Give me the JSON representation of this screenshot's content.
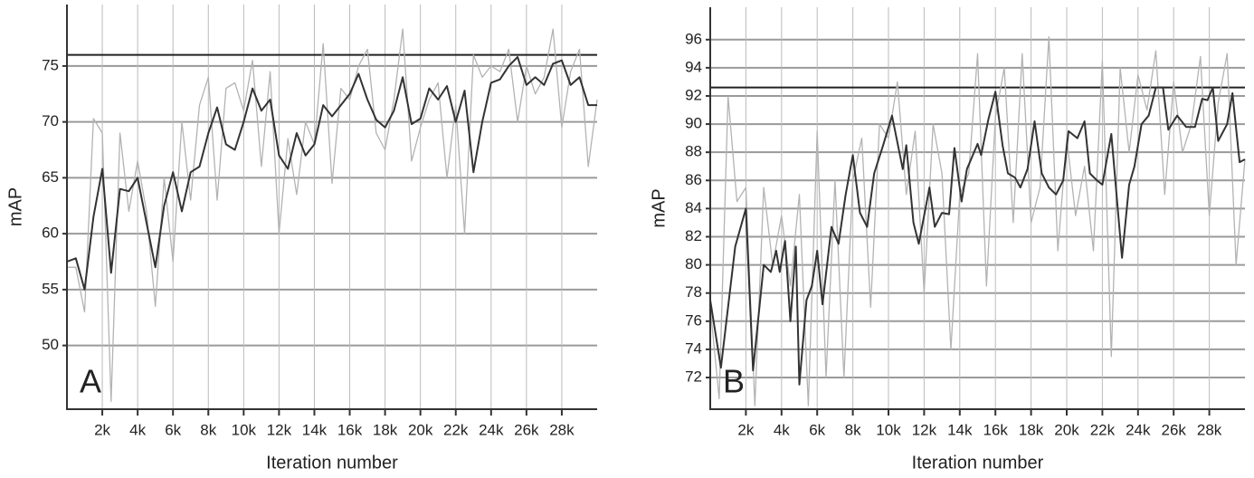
{
  "chart_data": [
    {
      "type": "line",
      "panel_label": "A",
      "x_label": "Iteration number",
      "y_label": "mAP",
      "xlim": [
        0,
        30000
      ],
      "ylim": [
        44.3,
        80.5
      ],
      "xticks": [
        {
          "value": 2000,
          "label": "2k"
        },
        {
          "value": 4000,
          "label": "4k"
        },
        {
          "value": 6000,
          "label": "6k"
        },
        {
          "value": 8000,
          "label": "8k"
        },
        {
          "value": 10000,
          "label": "10k"
        },
        {
          "value": 12000,
          "label": "12k"
        },
        {
          "value": 14000,
          "label": "14k"
        },
        {
          "value": 16000,
          "label": "16k"
        },
        {
          "value": 18000,
          "label": "18k"
        },
        {
          "value": 20000,
          "label": "20k"
        },
        {
          "value": 22000,
          "label": "22k"
        },
        {
          "value": 24000,
          "label": "24k"
        },
        {
          "value": 26000,
          "label": "26k"
        },
        {
          "value": 28000,
          "label": "28k"
        }
      ],
      "yticks": [
        50,
        55,
        60,
        65,
        70,
        75
      ],
      "grid": true,
      "reference_line": 76,
      "series": [
        {
          "color": "#b3b3b3",
          "x": [
            0,
            500,
            1000,
            1500,
            2000,
            2500,
            3000,
            3500,
            4000,
            4500,
            5000,
            5500,
            6000,
            6500,
            7000,
            7500,
            8000,
            8500,
            9000,
            9500,
            10000,
            10500,
            11000,
            11500,
            12000,
            12500,
            13000,
            13500,
            14000,
            14500,
            15000,
            15500,
            16000,
            16500,
            17000,
            17500,
            18000,
            18500,
            19000,
            19500,
            20000,
            20500,
            21000,
            21500,
            22000,
            22500,
            23000,
            23500,
            24000,
            24500,
            25000,
            25500,
            26000,
            26500,
            27000,
            27500,
            28000,
            28500,
            29000,
            29500,
            30000
          ],
          "values": [
            57,
            57,
            53,
            70.3,
            69,
            45,
            69,
            62,
            66.5,
            62,
            53.5,
            65,
            57.5,
            70,
            63,
            71.5,
            74,
            63,
            73,
            73.5,
            71,
            75.5,
            66,
            74.5,
            60,
            68.5,
            63.5,
            70,
            68,
            77,
            64.5,
            73,
            72,
            75,
            76.5,
            69,
            67.5,
            72,
            78.3,
            66.5,
            69.5,
            72,
            73.5,
            65,
            71.5,
            60,
            76,
            74,
            75,
            74.5,
            76.5,
            70,
            75,
            72.5,
            74,
            78.3,
            69.5,
            74.5,
            76.5,
            66,
            72
          ]
        },
        {
          "color": "#333333",
          "x": [
            0,
            500,
            1000,
            1500,
            2000,
            2500,
            3000,
            3500,
            4000,
            4500,
            5000,
            5500,
            6000,
            6500,
            7000,
            7500,
            8000,
            8500,
            9000,
            9500,
            10000,
            10500,
            11000,
            11500,
            12000,
            12500,
            13000,
            13500,
            14000,
            14500,
            15000,
            15500,
            16000,
            16500,
            17000,
            17500,
            18000,
            18500,
            19000,
            19500,
            20000,
            20500,
            21000,
            21500,
            22000,
            22500,
            23000,
            23500,
            24000,
            24500,
            25000,
            25500,
            26000,
            26500,
            27000,
            27500,
            28000,
            28500,
            29000,
            29500,
            30000
          ],
          "values": [
            57.5,
            57.8,
            55,
            61.5,
            65.8,
            56.5,
            64,
            63.8,
            65,
            61,
            57,
            62.5,
            65.5,
            62,
            65.5,
            66,
            69,
            71.3,
            68,
            67.5,
            70,
            73,
            71,
            72,
            67,
            65.8,
            69,
            67,
            68,
            71.5,
            70.5,
            71.5,
            72.5,
            74.3,
            72,
            70.2,
            69.5,
            71,
            74,
            69.8,
            70.3,
            73,
            72,
            73.2,
            70,
            72.8,
            65.5,
            70,
            73.5,
            73.8,
            75,
            75.8,
            73.3,
            74,
            73.3,
            75.2,
            75.5,
            73.3,
            74,
            71.5,
            71.5
          ]
        }
      ]
    },
    {
      "type": "line",
      "panel_label": "B",
      "x_label": "Iteration number",
      "y_label": "mAP",
      "xlim": [
        0,
        30000
      ],
      "ylim": [
        69.75,
        98.3
      ],
      "xticks": [
        {
          "value": 2000,
          "label": "2k"
        },
        {
          "value": 4000,
          "label": "4k"
        },
        {
          "value": 6000,
          "label": "6k"
        },
        {
          "value": 8000,
          "label": "8k"
        },
        {
          "value": 10000,
          "label": "10k"
        },
        {
          "value": 12000,
          "label": "12k"
        },
        {
          "value": 14000,
          "label": "14k"
        },
        {
          "value": 16000,
          "label": "16k"
        },
        {
          "value": 18000,
          "label": "18k"
        },
        {
          "value": 20000,
          "label": "20k"
        },
        {
          "value": 22000,
          "label": "22k"
        },
        {
          "value": 24000,
          "label": "24k"
        },
        {
          "value": 26000,
          "label": "26k"
        },
        {
          "value": 28000,
          "label": "28k"
        }
      ],
      "yticks": [
        72,
        74,
        76,
        78,
        80,
        82,
        84,
        86,
        88,
        90,
        92,
        94,
        96
      ],
      "grid": true,
      "reference_line": 92.6,
      "series": [
        {
          "color": "#b3b3b3",
          "x": [
            0,
            500,
            1000,
            1500,
            2000,
            2500,
            3000,
            3500,
            4000,
            4500,
            5000,
            5500,
            6000,
            6500,
            7000,
            7500,
            8000,
            8500,
            9000,
            9500,
            10000,
            10500,
            11000,
            11500,
            12000,
            12500,
            13000,
            13500,
            14000,
            14500,
            15000,
            15500,
            16000,
            16500,
            17000,
            17500,
            18000,
            18500,
            19000,
            19500,
            20000,
            20500,
            21000,
            21500,
            22000,
            22500,
            23000,
            23500,
            24000,
            24500,
            25000,
            25500,
            26000,
            26500,
            27000,
            27500,
            28000,
            28500,
            29000,
            29500,
            30000
          ],
          "values": [
            77,
            70.5,
            92,
            84.5,
            85.5,
            70,
            85.5,
            80,
            83.5,
            78.5,
            85,
            70,
            89.5,
            72,
            86,
            72,
            86,
            89,
            77,
            90,
            89,
            93,
            85,
            89.5,
            78,
            90,
            86.5,
            74,
            85,
            86.5,
            95,
            78.5,
            90.5,
            94,
            83,
            95,
            83,
            85.5,
            96.2,
            81,
            89,
            83.5,
            87,
            81,
            94.5,
            73.5,
            94,
            88,
            93.5,
            91,
            95.2,
            85,
            93,
            88,
            90,
            94.8,
            83.5,
            91.5,
            95,
            80,
            87.5
          ]
        },
        {
          "color": "#333333",
          "x": [
            0,
            600,
            1400,
            2000,
            2400,
            3000,
            3400,
            3700,
            3900,
            4200,
            4500,
            4800,
            5000,
            5400,
            5700,
            6000,
            6300,
            6800,
            7200,
            7600,
            8000,
            8400,
            8800,
            9200,
            9700,
            10200,
            10800,
            11000,
            11400,
            11700,
            12300,
            12600,
            13000,
            13400,
            13700,
            14100,
            14400,
            15000,
            15200,
            15600,
            16000,
            16400,
            16700,
            17100,
            17400,
            17800,
            18200,
            18600,
            19000,
            19400,
            19800,
            20100,
            20600,
            21000,
            21300,
            21700,
            22000,
            22500,
            23100,
            23500,
            23800,
            24200,
            24600,
            25000,
            25400,
            25700,
            26200,
            26700,
            27200,
            27600,
            27900,
            28200,
            28500,
            29000,
            29300,
            29700,
            30000
          ],
          "values": [
            77.5,
            72.7,
            81.3,
            84,
            72.5,
            80,
            79.5,
            81,
            79.5,
            81.7,
            76,
            81.3,
            71.5,
            77.5,
            78.5,
            81,
            77.2,
            82.7,
            81.5,
            85,
            87.8,
            83.7,
            82.7,
            86.5,
            88.5,
            90.6,
            86.8,
            88.5,
            83,
            81.5,
            85.5,
            82.7,
            83.7,
            83.6,
            88.3,
            84.5,
            86.8,
            88.6,
            87.8,
            90.3,
            92.3,
            88.5,
            86.5,
            86.2,
            85.5,
            86.8,
            90.2,
            86.5,
            85.5,
            85,
            86,
            89.5,
            89,
            90.2,
            86.5,
            86,
            85.7,
            89.3,
            80.5,
            85.7,
            87,
            90,
            90.6,
            92.6,
            92.6,
            89.6,
            90.6,
            89.8,
            89.8,
            91.8,
            91.7,
            92.6,
            88.8,
            90,
            92.2,
            87.3,
            87.5
          ]
        }
      ]
    }
  ]
}
